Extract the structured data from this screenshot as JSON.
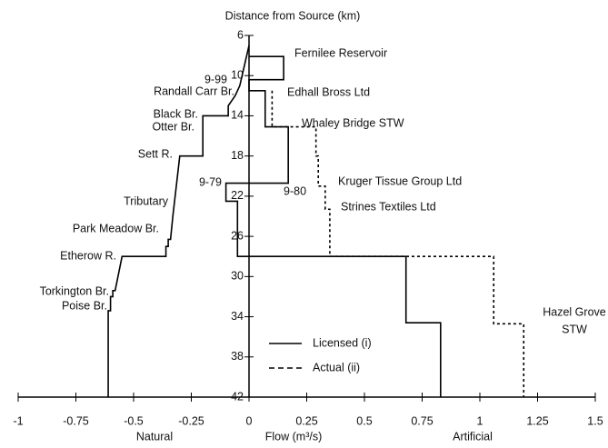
{
  "chart_data": {
    "type": "line",
    "title": "Distance from Source (km)",
    "x_labels": [
      "Natural",
      "Flow (m³/s)",
      "Artificial"
    ],
    "xlim": [
      -1,
      1.5
    ],
    "xticks": [
      -1,
      -0.75,
      -0.5,
      -0.25,
      0,
      0.25,
      0.5,
      0.75,
      1,
      1.25,
      1.5
    ],
    "ylim": [
      6,
      42
    ],
    "yticks": [
      6,
      10,
      14,
      18,
      22,
      26,
      30,
      34,
      38,
      42
    ],
    "y_reversed": true,
    "legend": "right",
    "series": [
      {
        "color": "#000000",
        "style": "solid",
        "x": [
          -0.61,
          -0.61,
          -0.6,
          -0.6,
          -0.59,
          -0.59,
          -0.58,
          -0.55,
          -0.36,
          -0.36,
          -0.35,
          -0.35,
          -0.34,
          -0.33,
          -0.31,
          -0.3,
          -0.2,
          -0.2,
          -0.09,
          -0.09,
          -0.06,
          -0.04,
          -0.02,
          0
        ],
        "values": [
          42,
          33.4,
          33.4,
          32,
          32,
          31.4,
          31.4,
          28,
          28,
          27,
          27,
          26.3,
          26.3,
          24,
          20,
          18,
          18,
          14,
          14,
          13,
          12,
          11,
          9,
          7
        ]
      },
      {
        "name": "Licensed (i)",
        "color": "#000000",
        "style": "solid",
        "x": [
          0,
          0.15,
          0.15,
          0,
          0,
          0.07,
          0.07,
          0.17,
          0.17,
          -0.1,
          -0.1,
          -0.05,
          -0.05,
          0.68,
          0.68,
          0.83,
          0.83
        ],
        "values": [
          8.1,
          8.1,
          10.4,
          10.4,
          11.5,
          11.5,
          15.1,
          15.1,
          20.7,
          20.7,
          22.5,
          22.5,
          28,
          28,
          34.6,
          34.6,
          42
        ]
      },
      {
        "name": "Actual (ii)",
        "color": "#000000",
        "style": "dashed",
        "x": [
          0.1,
          0.1,
          0.29,
          0.29,
          0.3,
          0.3,
          0.33,
          0.33,
          0.35,
          0.35,
          1.06,
          1.06,
          1.19,
          1.19
        ],
        "values": [
          11.5,
          15.1,
          15.1,
          18,
          18,
          21,
          21,
          23.3,
          23.3,
          28,
          28,
          34.7,
          34.7,
          42
        ]
      }
    ],
    "annotations": [
      "Fernilee Reservoir",
      "9-99",
      "Randall Carr Br.",
      "Edhall Bross Ltd",
      "Black Br.",
      "Otter Br.",
      "Whaley Bridge STW",
      "Sett R.",
      "Kruger Tissue Group Ltd",
      "9-79",
      "9-80",
      "Tributary",
      "Strines Textiles Ltd",
      "Park Meadow Br.",
      "Etherow R.",
      "Hazel Grove",
      "STW",
      "Torkington Br.",
      "Poise Br."
    ]
  }
}
